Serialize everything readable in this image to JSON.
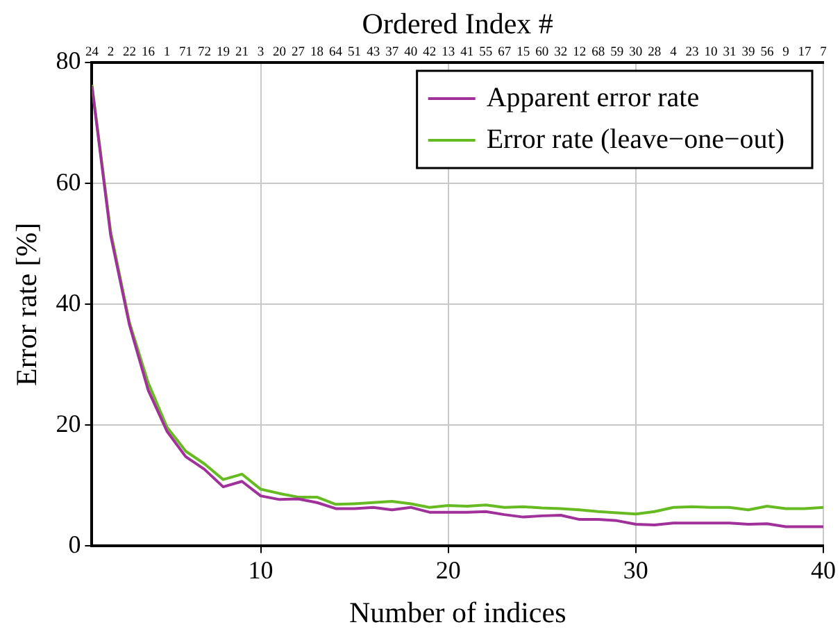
{
  "chart_data": {
    "type": "line",
    "xlabel": "Number of indices",
    "ylabel": "Error rate [%]",
    "x2label": "Ordered Index #",
    "x": [
      1,
      2,
      3,
      4,
      5,
      6,
      7,
      8,
      9,
      10,
      11,
      12,
      13,
      14,
      15,
      16,
      17,
      18,
      19,
      20,
      21,
      22,
      23,
      24,
      25,
      26,
      27,
      28,
      29,
      30,
      31,
      32,
      33,
      34,
      35,
      36,
      37,
      38,
      39,
      40
    ],
    "series": [
      {
        "name": "Apparent error rate",
        "color": "#a0309a",
        "values": [
          76.1,
          51.4,
          36.6,
          25.8,
          19,
          14.8,
          12.7,
          9.8,
          10.7,
          8.3,
          7.7,
          7.8,
          7.2,
          6.2,
          6.2,
          6.4,
          6,
          6.4,
          5.6,
          5.6,
          5.6,
          5.7,
          5.2,
          4.8,
          5,
          5.1,
          4.4,
          4.4,
          4.2,
          3.6,
          3.5,
          3.8,
          3.8,
          3.8,
          3.8,
          3.6,
          3.7,
          3.2,
          3.2,
          3.2
        ]
      },
      {
        "name": "Error rate (leave−one−out)",
        "color": "#66bb22",
        "values": [
          76.3,
          52,
          37,
          27,
          19.7,
          15.7,
          13.6,
          11,
          11.9,
          9.4,
          8.7,
          8.1,
          8.1,
          6.9,
          7,
          7.2,
          7.4,
          7,
          6.4,
          6.7,
          6.6,
          6.8,
          6.4,
          6.5,
          6.3,
          6.2,
          6,
          5.7,
          5.5,
          5.3,
          5.7,
          6.4,
          6.5,
          6.4,
          6.4,
          6,
          6.6,
          6.2,
          6.2,
          6.4
        ]
      }
    ],
    "xlim": [
      1,
      40
    ],
    "xticks": [
      10,
      20,
      30,
      40
    ],
    "ylim": [
      0,
      80
    ],
    "yticks": [
      0,
      20,
      40,
      60,
      80
    ],
    "annotations": [
      "24",
      "2",
      "22",
      "16",
      "1",
      "71",
      "72",
      "19",
      "21",
      "3",
      "20",
      "27",
      "18",
      "64",
      "51",
      "43",
      "37",
      "40",
      "42",
      "13",
      "41",
      "55",
      "67",
      "15",
      "60",
      "32",
      "12",
      "68",
      "59",
      "30",
      "28",
      "4",
      "23",
      "10",
      "31",
      "39",
      "56",
      "9",
      "17",
      "7"
    ],
    "grid": true,
    "legend": "top right",
    "marker": "none",
    "line_style": "solid"
  }
}
